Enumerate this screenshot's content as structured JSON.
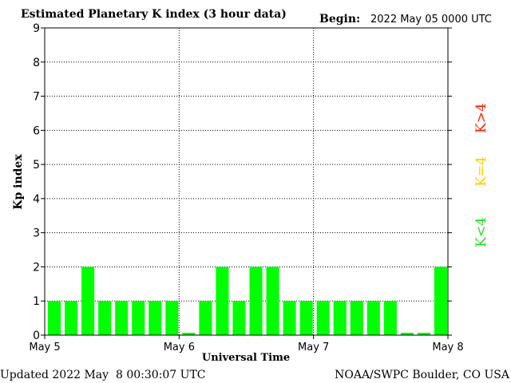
{
  "chart_data": {
    "type": "bar",
    "title": "Estimated Planetary K index (3 hour data)",
    "begin_label": "Begin:",
    "begin_value": "2022 May 05 0000 UTC",
    "ylabel": "Kp index",
    "xlabel": "Universal Time",
    "ylim": [
      0,
      9
    ],
    "yticks": [
      "0",
      "1",
      "2",
      "3",
      "4",
      "5",
      "6",
      "7",
      "8",
      "9"
    ],
    "xticks": [
      "May 5",
      "May 6",
      "May 7",
      "May 8"
    ],
    "grid": true,
    "values": [
      1,
      1,
      2,
      1,
      1,
      1,
      1,
      1,
      0.07,
      1,
      2,
      1,
      2,
      2,
      1,
      1,
      1,
      1,
      1,
      1,
      1,
      0.07,
      0.07,
      2
    ],
    "bar_color": "#00ff00",
    "legend": [
      {
        "label": "K<4",
        "color": "#22dd22"
      },
      {
        "label": "K=4",
        "color": "#ffcc00"
      },
      {
        "label": "K>4",
        "color": "#ff2200"
      }
    ]
  },
  "footer": {
    "updated": "Updated 2022 May  8 00:30:07 UTC",
    "source": "NOAA/SWPC Boulder, CO USA"
  }
}
